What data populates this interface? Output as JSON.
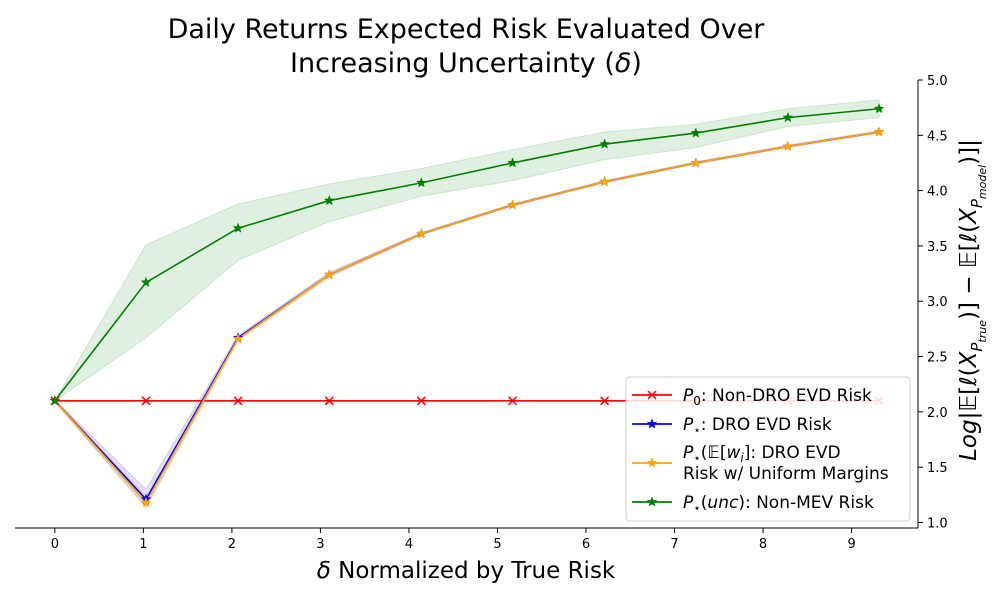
{
  "chart_data": {
    "type": "line",
    "title_line1": "Daily Returns Expected Risk Evaluated Over",
    "title_line2": "Increasing Uncertainty (δ)",
    "xlabel": "δ Normalized by True Risk",
    "ylabel": "Log|𝔼[ℓ(X_P_true)] − 𝔼[ℓ(X_P_model)]|",
    "xlim": [
      -0.45,
      9.75
    ],
    "ylim": [
      0.95,
      5.0
    ],
    "xticks": [
      "0",
      "1",
      "2",
      "3",
      "4",
      "5",
      "6",
      "7",
      "8",
      "9"
    ],
    "yticks": [
      "1.0",
      "1.5",
      "2.0",
      "2.5",
      "3.0",
      "3.5",
      "4.0",
      "4.5",
      "5.0"
    ],
    "x": [
      0,
      1.03,
      2.07,
      3.1,
      4.14,
      5.17,
      6.21,
      7.24,
      8.28,
      9.31
    ],
    "series": [
      {
        "name": "P0: Non-DRO EVD Risk",
        "color": "#ff0000",
        "marker": "x",
        "values": [
          2.1,
          2.1,
          2.1,
          2.1,
          2.1,
          2.1,
          2.1,
          2.1,
          2.1,
          2.1
        ]
      },
      {
        "name": "P⋆: DRO EVD Risk",
        "color": "#0000ff",
        "marker": "star",
        "values": [
          2.1,
          1.21,
          2.67,
          3.24,
          3.61,
          3.87,
          4.08,
          4.25,
          4.4,
          4.53
        ],
        "band_low": [
          2.09,
          1.14,
          2.65,
          3.22,
          3.6,
          3.86,
          4.07,
          4.24,
          4.39,
          4.52
        ],
        "band_high": [
          2.11,
          1.3,
          2.69,
          3.26,
          3.62,
          3.88,
          4.09,
          4.26,
          4.41,
          4.54
        ]
      },
      {
        "name": "P⋆(𝔼[w_i]: DRO EVD Risk w/ Uniform Margins",
        "color": "#ffa500",
        "marker": "star",
        "values": [
          2.1,
          1.18,
          2.66,
          3.24,
          3.61,
          3.87,
          4.08,
          4.25,
          4.4,
          4.53
        ],
        "band_low": [
          2.09,
          1.12,
          2.64,
          3.22,
          3.6,
          3.86,
          4.07,
          4.24,
          4.39,
          4.52
        ],
        "band_high": [
          2.11,
          1.24,
          2.68,
          3.26,
          3.62,
          3.88,
          4.09,
          4.26,
          4.41,
          4.54
        ]
      },
      {
        "name": "P⋆(unc): Non-MEV Risk",
        "color": "#008000",
        "marker": "star",
        "values": [
          2.1,
          3.17,
          3.66,
          3.91,
          4.07,
          4.25,
          4.42,
          4.52,
          4.66,
          4.74
        ],
        "band_low": [
          2.1,
          2.67,
          3.37,
          3.72,
          3.95,
          4.09,
          4.28,
          4.39,
          4.58,
          4.66
        ],
        "band_high": [
          2.1,
          3.51,
          3.88,
          4.06,
          4.2,
          4.37,
          4.53,
          4.6,
          4.74,
          4.82
        ]
      }
    ],
    "legend_placement": "lower-right",
    "grid": false
  }
}
